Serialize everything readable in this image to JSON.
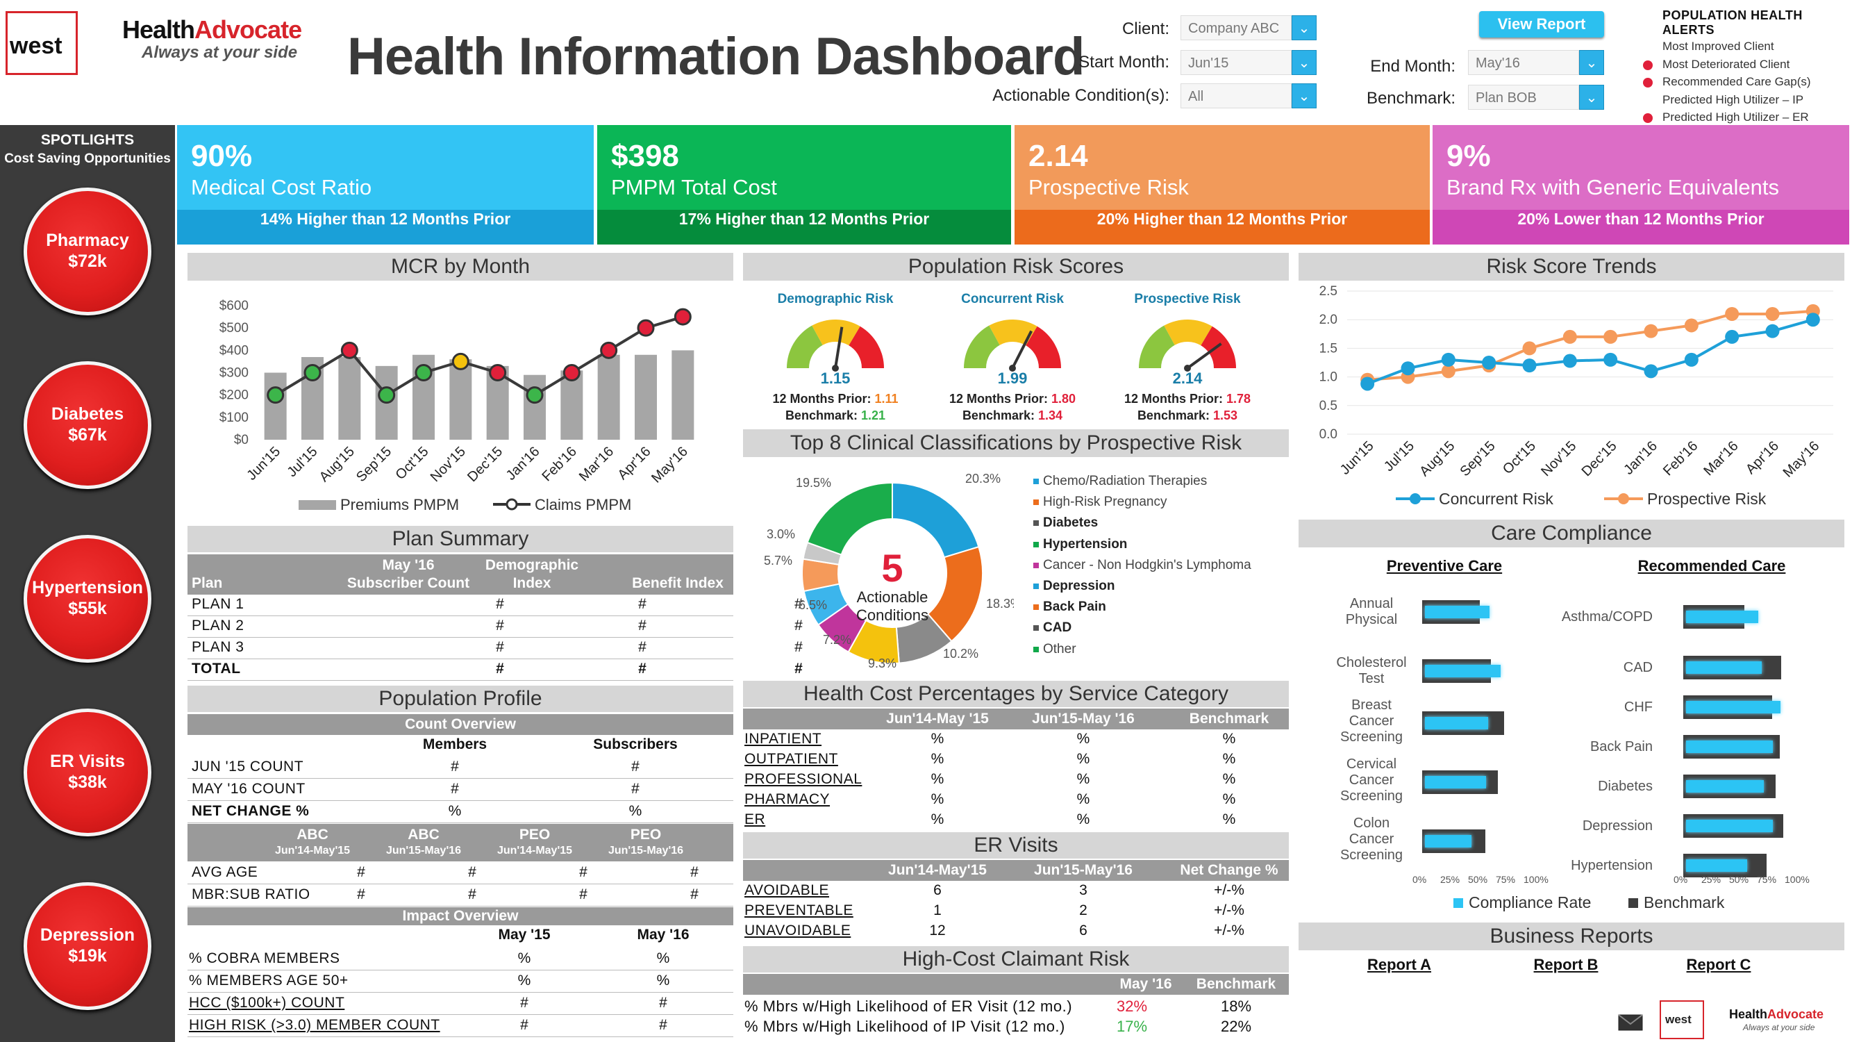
{
  "header": {
    "logo_west": "west",
    "logo_ha_part1": "Health",
    "logo_ha_part2": "Advocate",
    "logo_ha_tagline": "Always at your side",
    "title": "Health Information Dashboard",
    "client_label": "Client:",
    "client_value": "Company ABC",
    "start_label": "Start Month:",
    "start_value": "Jun'15",
    "end_label": "End Month:",
    "end_value": "May'16",
    "cond_label": "Actionable Condition(s):",
    "cond_value": "All",
    "bench_label": "Benchmark:",
    "bench_value": "Plan BOB",
    "view_report": "View Report",
    "alerts_title": "POPULATION HEALTH ALERTS",
    "alerts": [
      {
        "text": "Most Improved Client",
        "dot": false
      },
      {
        "text": "Most Deteriorated Client",
        "dot": true
      },
      {
        "text": "Recommended Care Gap(s)",
        "dot": true
      },
      {
        "text": "Predicted High Utilizer – IP",
        "dot": false
      },
      {
        "text": "Predicted High Utilizer – ER",
        "dot": true
      }
    ]
  },
  "sidebar": {
    "title": "SPOTLIGHTS",
    "subtitle": "Cost Saving Opportunities",
    "items": [
      {
        "name": "Pharmacy",
        "value": "$72k"
      },
      {
        "name": "Diabetes",
        "value": "$67k"
      },
      {
        "name": "Hypertension",
        "value": "$55k"
      },
      {
        "name": "ER Visits",
        "value": "$38k"
      },
      {
        "name": "Depression",
        "value": "$19k"
      }
    ]
  },
  "kpis": [
    {
      "value": "90%",
      "label": "Medical Cost Ratio",
      "foot": "14% Higher than 12 Months Prior",
      "color": "#33c4f4",
      "footcolor": "#1aa0d8"
    },
    {
      "value": "$398",
      "label": "PMPM Total Cost",
      "foot": "17% Higher than 12 Months Prior",
      "color": "#0bb656",
      "footcolor": "#058c3c"
    },
    {
      "value": "2.14",
      "label": "Prospective Risk",
      "foot": "20% Higher than 12 Months Prior",
      "color": "#f29a5a",
      "footcolor": "#ec6b1c"
    },
    {
      "value": "9%",
      "label": "Brand Rx with Generic Equivalents",
      "foot": "20% Lower than 12 Months Prior",
      "color": "#dc6dc6",
      "footcolor": "#cf47b6"
    }
  ],
  "mcr": {
    "title": "MCR by Month",
    "chart_data": {
      "type": "bar",
      "categories": [
        "Jun'15",
        "Jul'15",
        "Aug'15",
        "Sep'15",
        "Oct'15",
        "Nov'15",
        "Dec'15",
        "Jan'16",
        "Feb'16",
        "Mar'16",
        "Apr'16",
        "May'16"
      ],
      "ylim": [
        0,
        600
      ],
      "yticks": [
        "$0",
        "$100",
        "$200",
        "$300",
        "$400",
        "$500",
        "$600"
      ],
      "series": [
        {
          "name": "Premiums PMPM",
          "values": [
            300,
            370,
            370,
            330,
            380,
            360,
            330,
            290,
            310,
            380,
            380,
            400
          ]
        },
        {
          "name": "Claims PMPM",
          "values": [
            200,
            300,
            400,
            200,
            300,
            350,
            300,
            200,
            300,
            400,
            500,
            550
          ]
        }
      ],
      "dot_colors": [
        "green",
        "green",
        "red",
        "green",
        "green",
        "yellow",
        "red",
        "green",
        "red",
        "red",
        "red",
        "red"
      ],
      "colors": {
        "green": "#3cb54a",
        "red": "#e0203a",
        "yellow": "#f4c20d",
        "bar": "#a6a6a6",
        "line": "#3a3a3a"
      }
    }
  },
  "plan": {
    "title": "Plan Summary",
    "headers": [
      "Plan",
      "May '16 Subscriber Count",
      "Demographic Index",
      "Benefit Index"
    ],
    "h_top": [
      "May '16",
      "Demographic"
    ],
    "h_bot": [
      "Plan",
      "Subscriber Count",
      "Index",
      "Benefit Index"
    ],
    "rows": [
      [
        "PLAN 1",
        "#",
        "#",
        "#"
      ],
      [
        "PLAN 2",
        "#",
        "#",
        "#"
      ],
      [
        "PLAN 3",
        "#",
        "#",
        "#"
      ],
      [
        "TOTAL",
        "#",
        "#",
        "#"
      ]
    ]
  },
  "popprof": {
    "title": "Population Profile",
    "count_overview": "Count Overview",
    "cols": [
      "Members",
      "Subscribers"
    ],
    "rows": [
      [
        "JUN '15 COUNT",
        "#",
        "#"
      ],
      [
        "MAY '16 COUNT",
        "#",
        "#"
      ],
      [
        "NET CHANGE %",
        "%",
        "%"
      ]
    ],
    "grp_cols": [
      [
        "ABC",
        "Jun'14-May'15"
      ],
      [
        "ABC",
        "Jun'15-May'16"
      ],
      [
        "PEO",
        "Jun'14-May'15"
      ],
      [
        "PEO",
        "Jun'15-May'16"
      ]
    ],
    "grp_rows": [
      [
        "AVG AGE",
        "#",
        "#",
        "#",
        "#"
      ],
      [
        "MBR:SUB RATIO",
        "#",
        "#",
        "#",
        "#"
      ]
    ],
    "impact_overview": "Impact Overview",
    "imp_cols": [
      "May '15",
      "May '16"
    ],
    "imp_rows": [
      [
        "% COBRA MEMBERS",
        "%",
        "%"
      ],
      [
        "% MEMBERS AGE 50+",
        "%",
        "%"
      ],
      [
        "HCC ($100k+) COUNT",
        "#",
        "#"
      ],
      [
        "HIGH RISK (>3.0) MEMBER COUNT",
        "#",
        "#"
      ]
    ]
  },
  "risk": {
    "title": "Population Risk Scores",
    "gauges": [
      {
        "label": "Demographic Risk",
        "value": "1.15",
        "prior_label": "12 Months Prior:",
        "prior": "1.11",
        "prior_color": "orange",
        "bench_label": "Benchmark:",
        "bench": "1.21",
        "bench_color": "green",
        "needle": 0.55
      },
      {
        "label": "Concurrent Risk",
        "value": "1.99",
        "prior_label": "12 Months Prior:",
        "prior": "1.80",
        "prior_color": "red",
        "bench_label": "Benchmark:",
        "bench": "1.34",
        "bench_color": "red",
        "needle": 0.65
      },
      {
        "label": "Prospective Risk",
        "value": "2.14",
        "prior_label": "12 Months Prior:",
        "prior": "1.78",
        "prior_color": "red",
        "bench_label": "Benchmark:",
        "bench": "1.53",
        "bench_color": "red",
        "needle": 0.8
      }
    ]
  },
  "top8": {
    "title": "Top 8 Clinical Classifications by Prospective Risk",
    "center_num": "5",
    "center_txt": "Actionable Conditions",
    "chart_data": {
      "type": "pie",
      "slices": [
        {
          "label": "Chemo/Radiation Therapies",
          "value": 20.3,
          "color": "#1ea0d8"
        },
        {
          "label": "High-Risk Pregnancy",
          "value": 18.3,
          "color": "#ec6d1c"
        },
        {
          "label": "Diabetes",
          "value": 10.2,
          "color": "#8a8a8a"
        },
        {
          "label": "Hypertension",
          "value": 9.3,
          "color": "#f4c20d"
        },
        {
          "label": "Cancer - Non Hodgkin's Lymphoma",
          "value": 7.2,
          "color": "#c0359c"
        },
        {
          "label": "Depression",
          "value": 6.5,
          "color": "#3cb5ec"
        },
        {
          "label": "Back Pain",
          "value": 5.7,
          "color": "#f59a5a"
        },
        {
          "label": "CAD",
          "value": 3.0,
          "color": "#c8c8c8"
        },
        {
          "label": "Other",
          "value": 19.5,
          "color": "#1aad4b"
        }
      ],
      "pct_labels": [
        "20.3%",
        "18.3%",
        "10.2%",
        "9.3%",
        "7.2%",
        "6.5%",
        "5.7%",
        "3.0%",
        "19.5%"
      ]
    },
    "legend": [
      {
        "label": "Chemo/Radiation Therapies",
        "color": "#1ea0d8",
        "bold": false
      },
      {
        "label": "High-Risk Pregnancy",
        "color": "#ec6d1c",
        "bold": false
      },
      {
        "label": "Diabetes",
        "color": "#555555",
        "bold": true
      },
      {
        "label": "Hypertension",
        "color": "#11a84a",
        "bold": true
      },
      {
        "label": "Cancer - Non Hodgkin's Lymphoma",
        "color": "#c0359c",
        "bold": false
      },
      {
        "label": "Depression",
        "color": "#1ea0d8",
        "bold": true
      },
      {
        "label": "Back Pain",
        "color": "#ec6d1c",
        "bold": true
      },
      {
        "label": "CAD",
        "color": "#555555",
        "bold": true
      },
      {
        "label": "Other",
        "color": "#11a84a",
        "bold": false
      }
    ]
  },
  "hcost": {
    "title": "Health Cost Percentages by Service Category",
    "cols": [
      "Jun'14-May '15",
      "Jun'15-May '16",
      "Benchmark"
    ],
    "rows": [
      [
        "INPATIENT",
        "%",
        "%",
        "%"
      ],
      [
        "OUTPATIENT",
        "%",
        "%",
        "%"
      ],
      [
        "PROFESSIONAL",
        "%",
        "%",
        "%"
      ],
      [
        "PHARMACY",
        "%",
        "%",
        "%"
      ],
      [
        "ER",
        "%",
        "%",
        "%"
      ]
    ]
  },
  "er": {
    "title": "ER Visits",
    "cols": [
      "Jun'14-May'15",
      "Jun'15-May'16",
      "Net Change %"
    ],
    "rows": [
      [
        "AVOIDABLE",
        "6",
        "3",
        "+/-%"
      ],
      [
        "PREVENTABLE",
        "1",
        "2",
        "+/-%"
      ],
      [
        "UNAVOIDABLE",
        "12",
        "6",
        "+/-%"
      ]
    ]
  },
  "hcc": {
    "title": "High-Cost Claimant Risk",
    "cols": [
      "May '16",
      "Benchmark"
    ],
    "rows": [
      {
        "label": "% Mbrs w/High Likelihood of ER Visit (12 mo.)",
        "v": "32%",
        "vcolor": "red",
        "b": "18%"
      },
      {
        "label": "% Mbrs w/High Likelihood of IP Visit (12 mo.)",
        "v": "17%",
        "vcolor": "green",
        "b": "22%"
      }
    ]
  },
  "trends": {
    "title": "Risk Score Trends",
    "chart_data": {
      "type": "line",
      "categories": [
        "Jun'15",
        "Jul'15",
        "Aug'15",
        "Sep'15",
        "Oct'15",
        "Nov'15",
        "Dec'15",
        "Jan'16",
        "Feb'16",
        "Mar'16",
        "Apr'16",
        "May'16"
      ],
      "ylim": [
        0,
        2.5
      ],
      "yticks": [
        "0.0",
        "0.5",
        "1.0",
        "1.5",
        "2.0",
        "2.5"
      ],
      "series": [
        {
          "name": "Concurrent Risk",
          "color": "#1ea0d8",
          "values": [
            0.88,
            1.15,
            1.3,
            1.25,
            1.2,
            1.28,
            1.3,
            1.1,
            1.3,
            1.7,
            1.8,
            2.0
          ]
        },
        {
          "name": "Prospective Risk",
          "color": "#f59a5a",
          "values": [
            0.95,
            1.0,
            1.1,
            1.2,
            1.5,
            1.7,
            1.7,
            1.8,
            1.9,
            2.1,
            2.1,
            2.15
          ]
        }
      ]
    }
  },
  "care": {
    "title": "Care Compliance",
    "preventive_title": "Preventive Care",
    "recommended_title": "Recommended Care",
    "preventive": [
      {
        "label": "Annual Physical",
        "rate": 0.58,
        "bench": 0.52
      },
      {
        "label": "Cholesterol Test",
        "rate": 0.68,
        "bench": 0.62
      },
      {
        "label": "Breast Cancer Screening",
        "rate": 0.57,
        "bench": 0.74
      },
      {
        "label": "Cervical Cancer Screening",
        "rate": 0.55,
        "bench": 0.68
      },
      {
        "label": "Colon Cancer Screening",
        "rate": 0.42,
        "bench": 0.57
      }
    ],
    "recommended": [
      {
        "label": "Asthma/COPD",
        "rate": 0.65,
        "bench": 0.55
      },
      {
        "label": "CAD",
        "rate": 0.68,
        "bench": 0.88
      },
      {
        "label": "CHF",
        "rate": 0.85,
        "bench": 0.8
      },
      {
        "label": "Back Pain",
        "rate": 0.78,
        "bench": 0.87
      },
      {
        "label": "Diabetes",
        "rate": 0.7,
        "bench": 0.83
      },
      {
        "label": "Depression",
        "rate": 0.78,
        "bench": 0.9
      },
      {
        "label": "Hypertension",
        "rate": 0.55,
        "bench": 0.75
      }
    ],
    "axis": [
      "0%",
      "25%",
      "50%",
      "75%",
      "100%"
    ],
    "legend_rate": "Compliance Rate",
    "legend_bench": "Benchmark"
  },
  "reports": {
    "title": "Business Reports",
    "items": [
      "Report A",
      "Report B",
      "Report C"
    ]
  },
  "footer": {
    "west": "west",
    "ha1": "Health",
    "ha2": "Advocate",
    "tag": "Always at your side"
  }
}
